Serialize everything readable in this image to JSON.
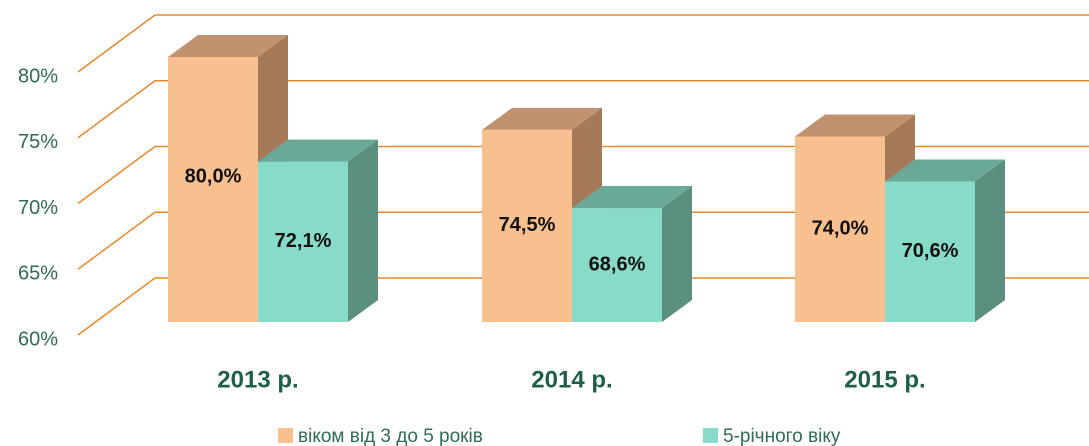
{
  "chart_data": {
    "type": "bar3d",
    "categories": [
      "2013 р.",
      "2014 р.",
      "2015 р."
    ],
    "series": [
      {
        "name": "віком від 3 до 5 років",
        "color": "#f9c08f",
        "side": "#a67a58",
        "top": "#c09270",
        "values": [
          80.0,
          74.5,
          74.0
        ],
        "value_labels": [
          "80,0%",
          "74,5%",
          "74,0%"
        ]
      },
      {
        "name": "5-річного віку",
        "color": "#88dbc8",
        "side": "#5a8e7e",
        "top": "#6aa898",
        "values": [
          72.1,
          68.6,
          70.6
        ],
        "value_labels": [
          "72,1%",
          "68,6%",
          "70,6%"
        ]
      }
    ],
    "ylim": [
      60,
      80
    ],
    "yticks": [
      {
        "value": 60,
        "label": "60%"
      },
      {
        "value": 65,
        "label": "65%"
      },
      {
        "value": 70,
        "label": "70%"
      },
      {
        "value": 75,
        "label": "75%"
      },
      {
        "value": 80,
        "label": "80%"
      }
    ],
    "grid": true,
    "grid_color": "#e6892a"
  }
}
